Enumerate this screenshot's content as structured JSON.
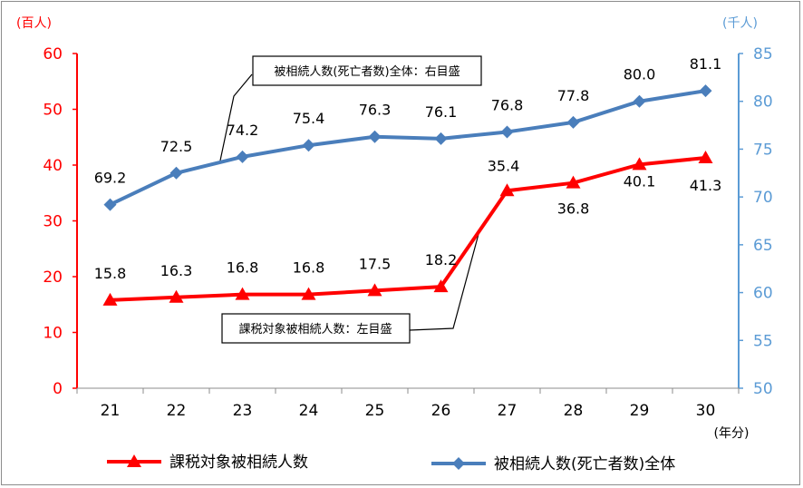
{
  "chart_data": {
    "type": "line",
    "categories": [
      "21",
      "22",
      "23",
      "24",
      "25",
      "26",
      "27",
      "28",
      "29",
      "30"
    ],
    "x_unit_label": "(年分)",
    "left_axis": {
      "unit_label": "(百人)",
      "ylim": [
        0,
        60
      ],
      "ticks": [
        0,
        10,
        20,
        30,
        40,
        50,
        60
      ],
      "color": "#ff0000"
    },
    "right_axis": {
      "unit_label": "(千人)",
      "ylim": [
        50,
        85
      ],
      "ticks": [
        50,
        55,
        60,
        65,
        70,
        75,
        80,
        85
      ],
      "color": "#5b9bd5"
    },
    "series": [
      {
        "name": "被相続人数(死亡者数)全体",
        "axis": "right",
        "color": "#4a7ebb",
        "marker": "diamond",
        "values": [
          69.2,
          72.5,
          74.2,
          75.4,
          76.3,
          76.1,
          76.8,
          77.8,
          80.0,
          81.1
        ],
        "labels": [
          "69.2",
          "72.5",
          "74.2",
          "75.4",
          "76.3",
          "76.1",
          "76.8",
          "77.8",
          "80.0",
          "81.1"
        ],
        "callout": "被相続人数(死亡者数)全体：右目盛"
      },
      {
        "name": "課税対象被相続人数",
        "axis": "left",
        "color": "#ff0000",
        "marker": "triangle",
        "values": [
          15.8,
          16.3,
          16.8,
          16.8,
          17.5,
          18.2,
          35.4,
          36.8,
          40.1,
          41.3
        ],
        "labels": [
          "15.8",
          "16.3",
          "16.8",
          "16.8",
          "17.5",
          "18.2",
          "35.4",
          "36.8",
          "40.1",
          "41.3"
        ],
        "callout": "課税対象被相続人数：左目盛"
      }
    ],
    "legend": {
      "placement": "bottom",
      "entries": [
        "課税対象被相続人数",
        "被相続人数(死亡者数)全体"
      ]
    }
  }
}
